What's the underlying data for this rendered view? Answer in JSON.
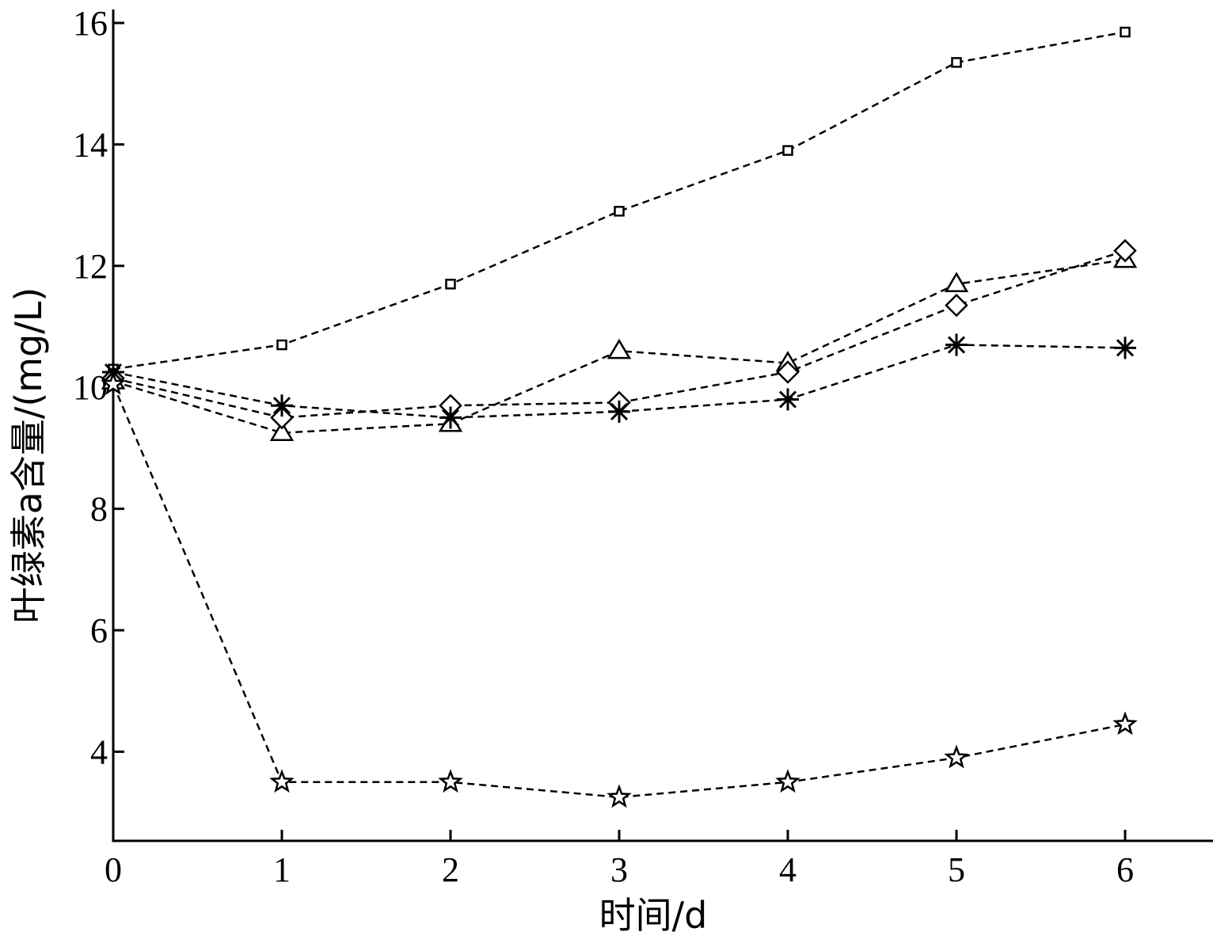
{
  "chart_data": {
    "type": "line",
    "title": "",
    "xlabel": "时间/d",
    "ylabel": "叶绿素a含量/(mg/L)",
    "x": [
      0,
      1,
      2,
      3,
      4,
      5,
      6
    ],
    "xlim": [
      0,
      6.5
    ],
    "ylim": [
      2.5,
      16
    ],
    "xticks": [
      "0",
      "1",
      "2",
      "3",
      "4",
      "5",
      "6"
    ],
    "yticks": [
      "4",
      "6",
      "8",
      "10",
      "12",
      "14",
      "16"
    ],
    "grid": false,
    "legend": "none",
    "line_style": "dashed",
    "series": [
      {
        "marker": "square",
        "values": [
          10.3,
          10.7,
          11.7,
          12.9,
          13.9,
          15.35,
          15.85
        ]
      },
      {
        "marker": "triangle",
        "values": [
          10.1,
          9.25,
          9.4,
          10.6,
          10.4,
          11.7,
          12.1
        ]
      },
      {
        "marker": "diamond",
        "values": [
          10.15,
          9.5,
          9.7,
          9.75,
          10.25,
          11.35,
          12.25
        ]
      },
      {
        "marker": "asterisk",
        "values": [
          10.25,
          9.7,
          9.5,
          9.6,
          9.8,
          10.7,
          10.65
        ]
      },
      {
        "marker": "star",
        "values": [
          10.05,
          3.5,
          3.5,
          3.25,
          3.5,
          3.9,
          4.45
        ]
      }
    ]
  }
}
